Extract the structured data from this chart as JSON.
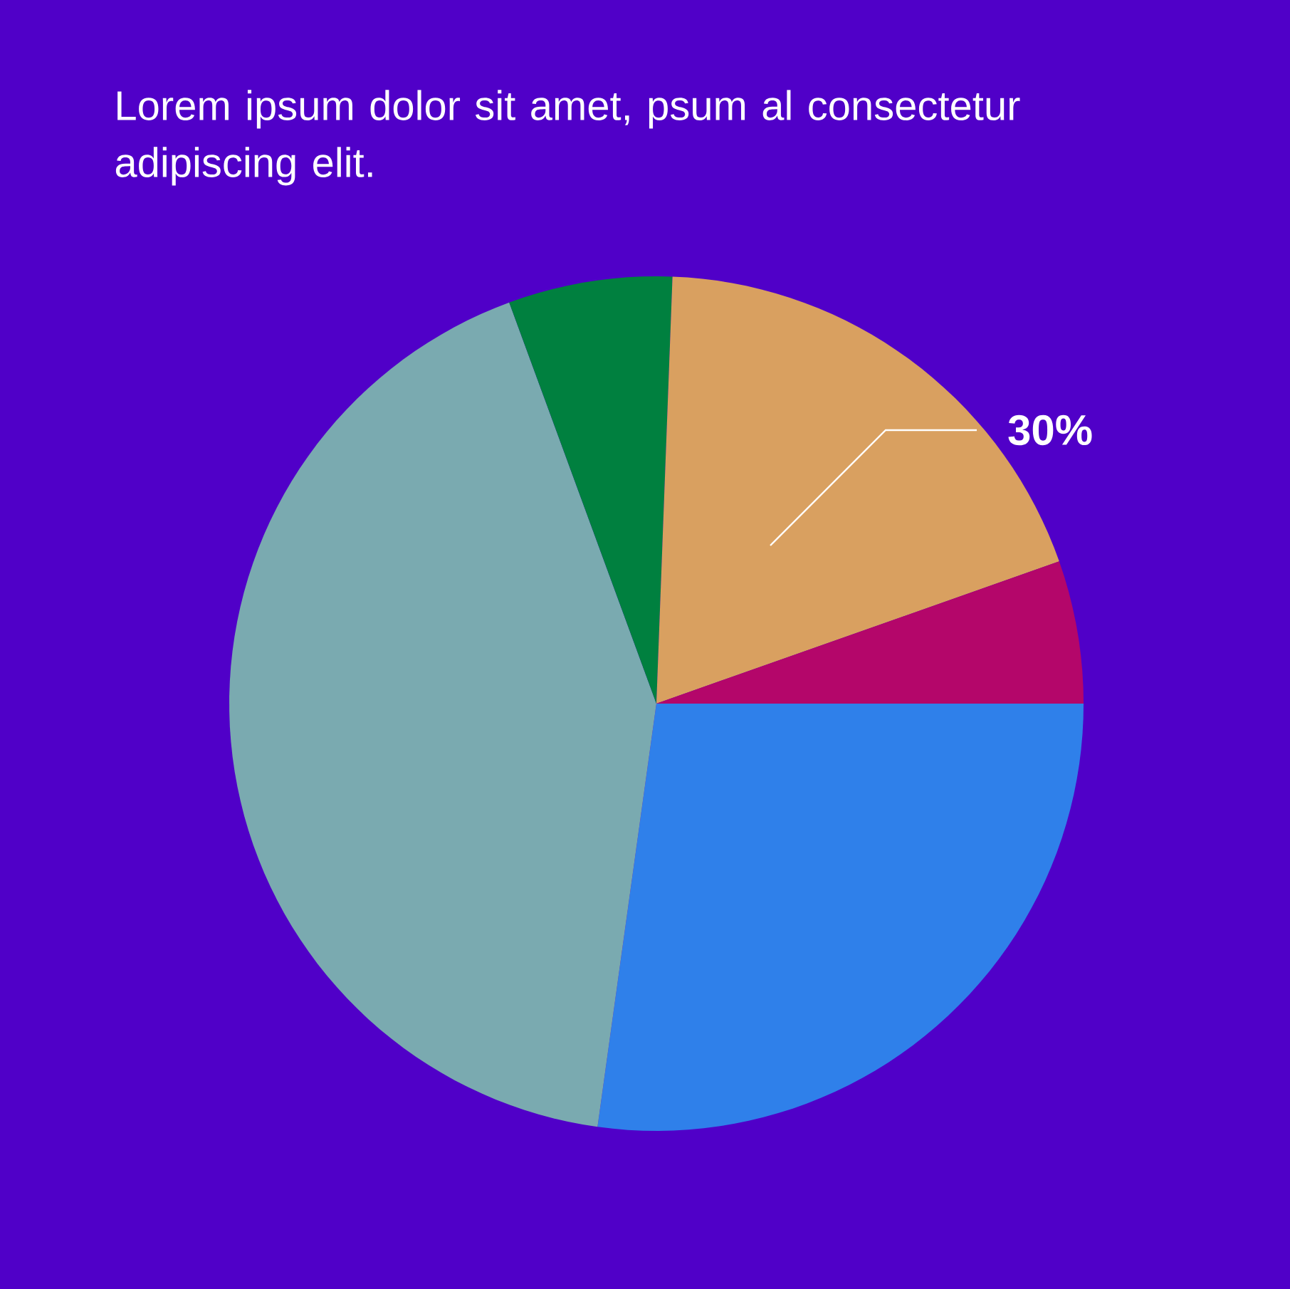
{
  "chart_data": {
    "type": "pie",
    "title": "Lorem ipsum dolor sit amet, psum al consectetur adipiscing elit.",
    "categories": [
      null,
      null,
      null,
      null,
      null
    ],
    "values": [
      27.2,
      42.2,
      6.2,
      19.0,
      5.4
    ],
    "colors": [
      "#2f80ea",
      "#7aaab0",
      "#00803f",
      "#d9a060",
      "#b4066a"
    ],
    "annotations": [
      "30%"
    ]
  }
}
